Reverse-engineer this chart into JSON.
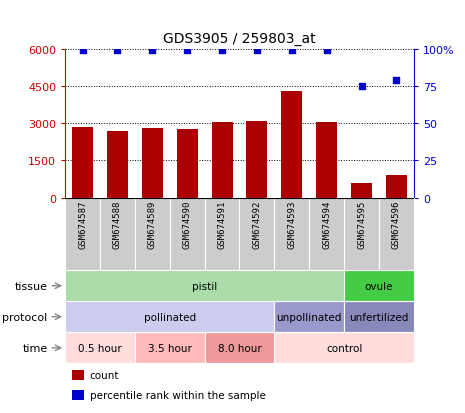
{
  "title": "GDS3905 / 259803_at",
  "samples": [
    "GSM674587",
    "GSM674588",
    "GSM674589",
    "GSM674590",
    "GSM674591",
    "GSM674592",
    "GSM674593",
    "GSM674594",
    "GSM674595",
    "GSM674596"
  ],
  "counts": [
    2850,
    2700,
    2800,
    2750,
    3050,
    3100,
    4300,
    3050,
    600,
    900
  ],
  "percentile_ranks": [
    99,
    99,
    99,
    99,
    99,
    99,
    99,
    99,
    75,
    79
  ],
  "ylim_left": [
    0,
    6000
  ],
  "ylim_right": [
    0,
    100
  ],
  "yticks_left": [
    0,
    1500,
    3000,
    4500,
    6000
  ],
  "yticks_right": [
    0,
    25,
    50,
    75,
    100
  ],
  "ytick_right_labels": [
    "0",
    "25",
    "50",
    "75",
    "100%"
  ],
  "bar_color": "#aa0000",
  "dot_color": "#0000cc",
  "tissue_labels": [
    {
      "label": "pistil",
      "start": 0,
      "end": 8,
      "color": "#aaddaa"
    },
    {
      "label": "ovule",
      "start": 8,
      "end": 10,
      "color": "#44cc44"
    }
  ],
  "protocol_labels": [
    {
      "label": "pollinated",
      "start": 0,
      "end": 6,
      "color": "#ccccee"
    },
    {
      "label": "unpollinated",
      "start": 6,
      "end": 8,
      "color": "#9999cc"
    },
    {
      "label": "unfertilized",
      "start": 8,
      "end": 10,
      "color": "#8888bb"
    }
  ],
  "time_labels": [
    {
      "label": "0.5 hour",
      "start": 0,
      "end": 2,
      "color": "#ffdddd"
    },
    {
      "label": "3.5 hour",
      "start": 2,
      "end": 4,
      "color": "#ffbbbb"
    },
    {
      "label": "8.0 hour",
      "start": 4,
      "end": 6,
      "color": "#ee9999"
    },
    {
      "label": "control",
      "start": 6,
      "end": 10,
      "color": "#ffdddd"
    }
  ],
  "row_labels": [
    "tissue",
    "protocol",
    "time"
  ],
  "legend_items": [
    {
      "label": "count",
      "color": "#aa0000"
    },
    {
      "label": "percentile rank within the sample",
      "color": "#0000cc"
    }
  ],
  "sample_box_color": "#cccccc",
  "axis_left_color": "#cc0000",
  "axis_right_color": "#0000cc",
  "background_color": "#ffffff",
  "n_samples": 10
}
